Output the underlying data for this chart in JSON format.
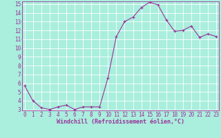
{
  "x": [
    0,
    1,
    2,
    3,
    4,
    5,
    6,
    7,
    8,
    9,
    10,
    11,
    12,
    13,
    14,
    15,
    16,
    17,
    18,
    19,
    20,
    21,
    22,
    23
  ],
  "y": [
    5.7,
    4.0,
    3.2,
    3.0,
    3.3,
    3.5,
    3.0,
    3.3,
    3.3,
    3.3,
    6.6,
    11.3,
    13.0,
    13.5,
    14.6,
    15.2,
    14.9,
    13.2,
    11.9,
    12.0,
    12.5,
    11.2,
    11.6,
    11.3
  ],
  "line_color": "#993399",
  "marker": "+",
  "marker_size": 3,
  "bg_color": "#aaeedd",
  "grid_color": "#ccffff",
  "xlabel": "Windchill (Refroidissement éolien,°C)",
  "ylim_min": 3,
  "ylim_max": 15,
  "yticks": [
    3,
    4,
    5,
    6,
    7,
    8,
    9,
    10,
    11,
    12,
    13,
    14,
    15
  ],
  "xticks": [
    0,
    1,
    2,
    3,
    4,
    5,
    6,
    7,
    8,
    9,
    10,
    11,
    12,
    13,
    14,
    15,
    16,
    17,
    18,
    19,
    20,
    21,
    22,
    23
  ],
  "axis_color": "#993399",
  "tick_color": "#993399",
  "label_color": "#993399",
  "font": "monospace",
  "tick_fontsize": 5.5,
  "xlabel_fontsize": 6.0
}
